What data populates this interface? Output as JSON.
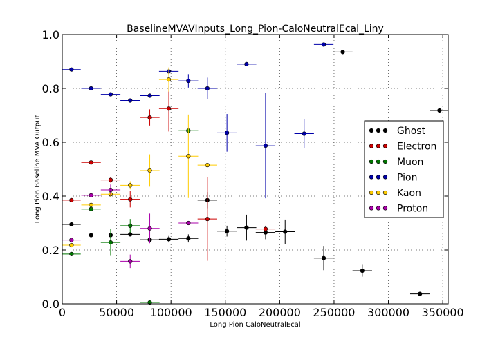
{
  "chart_data": {
    "type": "scatter",
    "title": "BaselineMVAVInputs_Long_Pion-CaloNeutralEcal_Liny",
    "xlabel": "Long Pion CaloNeutralEcal",
    "ylabel": "Long Pion Baseline MVA Output",
    "xlim": [
      0,
      355000
    ],
    "ylim": [
      0.0,
      1.0
    ],
    "x_ticks": [
      0,
      50000,
      100000,
      150000,
      200000,
      250000,
      300000,
      350000
    ],
    "x_tick_labels": [
      "0",
      "50000",
      "100000",
      "150000",
      "200000",
      "250000",
      "300000",
      "350000"
    ],
    "y_ticks": [
      0.0,
      0.2,
      0.4,
      0.6,
      0.8,
      1.0
    ],
    "y_tick_labels": [
      "0.0",
      "0.2",
      "0.4",
      "0.6",
      "0.8",
      "1.0"
    ],
    "grid": true,
    "legend_position": "right",
    "series": [
      {
        "name": "Ghost",
        "color": "#000000",
        "points": [
          {
            "x": 8500,
            "y": 0.295,
            "xerr": 8500,
            "yerr": 0.0
          },
          {
            "x": 26500,
            "y": 0.255,
            "xerr": 9000,
            "yerr": 0.0
          },
          {
            "x": 44500,
            "y": 0.255,
            "xerr": 9000,
            "yerr": 0.0
          },
          {
            "x": 62500,
            "y": 0.258,
            "xerr": 9000,
            "yerr": 0.0
          },
          {
            "x": 80500,
            "y": 0.238,
            "xerr": 9000,
            "yerr": 0.0
          },
          {
            "x": 98000,
            "y": 0.24,
            "xerr": 9000,
            "yerr": 0.012
          },
          {
            "x": 116000,
            "y": 0.243,
            "xerr": 9000,
            "yerr": 0.015
          },
          {
            "x": 133500,
            "y": 0.385,
            "xerr": 9000,
            "yerr": 0.03
          },
          {
            "x": 151500,
            "y": 0.27,
            "xerr": 9000,
            "yerr": 0.02
          },
          {
            "x": 169500,
            "y": 0.283,
            "xerr": 9000,
            "yerr": 0.048
          },
          {
            "x": 187000,
            "y": 0.265,
            "xerr": 9000,
            "yerr": 0.025
          },
          {
            "x": 205000,
            "y": 0.268,
            "xerr": 9000,
            "yerr": 0.045
          },
          {
            "x": 240500,
            "y": 0.17,
            "xerr": 9000,
            "yerr": 0.045
          },
          {
            "x": 258000,
            "y": 0.935,
            "xerr": 9000,
            "yerr": 0.0
          },
          {
            "x": 276000,
            "y": 0.123,
            "xerr": 9000,
            "yerr": 0.022
          },
          {
            "x": 329000,
            "y": 0.037,
            "xerr": 9000,
            "yerr": 0.0
          },
          {
            "x": 347000,
            "y": 0.718,
            "xerr": 9000,
            "yerr": 0.0
          }
        ]
      },
      {
        "name": "Electron",
        "color": "#cc0000",
        "points": [
          {
            "x": 8500,
            "y": 0.385,
            "xerr": 8500,
            "yerr": 0.0
          },
          {
            "x": 26500,
            "y": 0.525,
            "xerr": 9000,
            "yerr": 0.0
          },
          {
            "x": 44500,
            "y": 0.46,
            "xerr": 9000,
            "yerr": 0.01
          },
          {
            "x": 62500,
            "y": 0.388,
            "xerr": 9000,
            "yerr": 0.03
          },
          {
            "x": 80500,
            "y": 0.692,
            "xerr": 9000,
            "yerr": 0.03
          },
          {
            "x": 98000,
            "y": 0.725,
            "xerr": 9000,
            "yerr": 0.085
          },
          {
            "x": 133500,
            "y": 0.315,
            "xerr": 9000,
            "yerr": 0.155
          },
          {
            "x": 187000,
            "y": 0.278,
            "xerr": 9000,
            "yerr": 0.0
          }
        ]
      },
      {
        "name": "Muon",
        "color": "#007700",
        "points": [
          {
            "x": 8500,
            "y": 0.185,
            "xerr": 8500,
            "yerr": 0.0
          },
          {
            "x": 26500,
            "y": 0.352,
            "xerr": 9000,
            "yerr": 0.008
          },
          {
            "x": 44500,
            "y": 0.228,
            "xerr": 9000,
            "yerr": 0.05
          },
          {
            "x": 62500,
            "y": 0.29,
            "xerr": 9000,
            "yerr": 0.025
          },
          {
            "x": 80500,
            "y": 0.005,
            "xerr": 9000,
            "yerr": 0.0
          },
          {
            "x": 116000,
            "y": 0.643,
            "xerr": 9000,
            "yerr": 0.0
          }
        ]
      },
      {
        "name": "Pion",
        "color": "#0000aa",
        "points": [
          {
            "x": 8500,
            "y": 0.87,
            "xerr": 8500,
            "yerr": 0.0
          },
          {
            "x": 26500,
            "y": 0.8,
            "xerr": 9000,
            "yerr": 0.0
          },
          {
            "x": 44500,
            "y": 0.778,
            "xerr": 9000,
            "yerr": 0.0
          },
          {
            "x": 62500,
            "y": 0.755,
            "xerr": 9000,
            "yerr": 0.0
          },
          {
            "x": 80500,
            "y": 0.773,
            "xerr": 9000,
            "yerr": 0.0
          },
          {
            "x": 98000,
            "y": 0.863,
            "xerr": 9000,
            "yerr": 0.012
          },
          {
            "x": 116000,
            "y": 0.828,
            "xerr": 9000,
            "yerr": 0.025
          },
          {
            "x": 133500,
            "y": 0.8,
            "xerr": 9000,
            "yerr": 0.04
          },
          {
            "x": 151500,
            "y": 0.635,
            "xerr": 9000,
            "yerr": 0.07
          },
          {
            "x": 169500,
            "y": 0.89,
            "xerr": 9000,
            "yerr": 0.0
          },
          {
            "x": 187000,
            "y": 0.587,
            "xerr": 9000,
            "yerr": 0.195
          },
          {
            "x": 222500,
            "y": 0.632,
            "xerr": 9000,
            "yerr": 0.055
          },
          {
            "x": 240500,
            "y": 0.963,
            "xerr": 9000,
            "yerr": 0.0
          }
        ]
      },
      {
        "name": "Kaon",
        "color": "#ffcc00",
        "points": [
          {
            "x": 8500,
            "y": 0.218,
            "xerr": 8500,
            "yerr": 0.0
          },
          {
            "x": 26500,
            "y": 0.367,
            "xerr": 9000,
            "yerr": 0.012
          },
          {
            "x": 44500,
            "y": 0.407,
            "xerr": 9000,
            "yerr": 0.012
          },
          {
            "x": 62500,
            "y": 0.44,
            "xerr": 9000,
            "yerr": 0.015
          },
          {
            "x": 80500,
            "y": 0.495,
            "xerr": 9000,
            "yerr": 0.06
          },
          {
            "x": 98000,
            "y": 0.833,
            "xerr": 9000,
            "yerr": 0.045
          },
          {
            "x": 116000,
            "y": 0.548,
            "xerr": 9000,
            "yerr": 0.155
          },
          {
            "x": 133500,
            "y": 0.515,
            "xerr": 9000,
            "yerr": 0.0
          }
        ]
      },
      {
        "name": "Proton",
        "color": "#aa00aa",
        "points": [
          {
            "x": 8500,
            "y": 0.237,
            "xerr": 8500,
            "yerr": 0.0
          },
          {
            "x": 26500,
            "y": 0.403,
            "xerr": 9000,
            "yerr": 0.0
          },
          {
            "x": 44500,
            "y": 0.423,
            "xerr": 9000,
            "yerr": 0.02
          },
          {
            "x": 62500,
            "y": 0.158,
            "xerr": 9000,
            "yerr": 0.025
          },
          {
            "x": 80500,
            "y": 0.28,
            "xerr": 9000,
            "yerr": 0.055
          },
          {
            "x": 116000,
            "y": 0.3,
            "xerr": 9000,
            "yerr": 0.0
          }
        ]
      }
    ]
  }
}
